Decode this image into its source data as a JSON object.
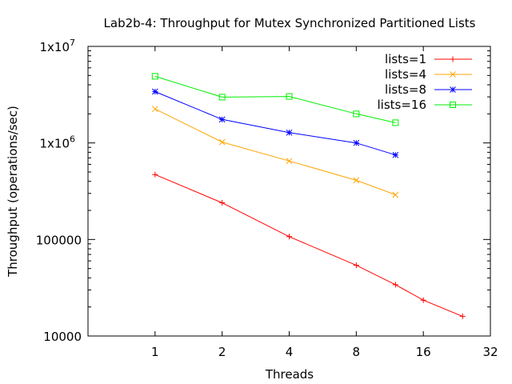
{
  "chart_data": {
    "type": "line",
    "title": "Lab2b-4: Throughput for Mutex Synchronized Partitioned Lists",
    "xlabel": "Threads",
    "ylabel": "Throughput (operations/sec)",
    "x_scale": "log2",
    "y_scale": "log10",
    "xlim": [
      0.5,
      32
    ],
    "ylim": [
      10000,
      10000000
    ],
    "x_ticks": [
      {
        "value": 1,
        "label": "1"
      },
      {
        "value": 2,
        "label": "2"
      },
      {
        "value": 4,
        "label": "4"
      },
      {
        "value": 8,
        "label": "8"
      },
      {
        "value": 16,
        "label": "16"
      },
      {
        "value": 32,
        "label": "32"
      }
    ],
    "y_ticks": [
      {
        "value": 10000,
        "label": "10000"
      },
      {
        "value": 100000,
        "label": "100000"
      },
      {
        "value": 1000000,
        "label": "1x10",
        "exp": "6"
      },
      {
        "value": 10000000,
        "label": "1x10",
        "exp": "7"
      }
    ],
    "grid": false,
    "legend_position": "top-right",
    "series": [
      {
        "name": "lists=1",
        "color": "#ff0000",
        "marker": "plus",
        "x": [
          1,
          2,
          4,
          8,
          12,
          16,
          24
        ],
        "y": [
          470000,
          240000,
          107000,
          54000,
          34000,
          23500,
          16000
        ]
      },
      {
        "name": "lists=4",
        "color": "#ffa500",
        "marker": "cross",
        "x": [
          1,
          2,
          4,
          8,
          12
        ],
        "y": [
          2250000,
          1020000,
          650000,
          410000,
          290000
        ]
      },
      {
        "name": "lists=8",
        "color": "#0000ff",
        "marker": "star",
        "x": [
          1,
          2,
          4,
          8,
          12
        ],
        "y": [
          3400000,
          1750000,
          1280000,
          1000000,
          750000
        ]
      },
      {
        "name": "lists=16",
        "color": "#00ee00",
        "marker": "square",
        "x": [
          1,
          2,
          4,
          8,
          12
        ],
        "y": [
          4900000,
          2980000,
          3030000,
          2000000,
          1620000
        ]
      }
    ]
  }
}
